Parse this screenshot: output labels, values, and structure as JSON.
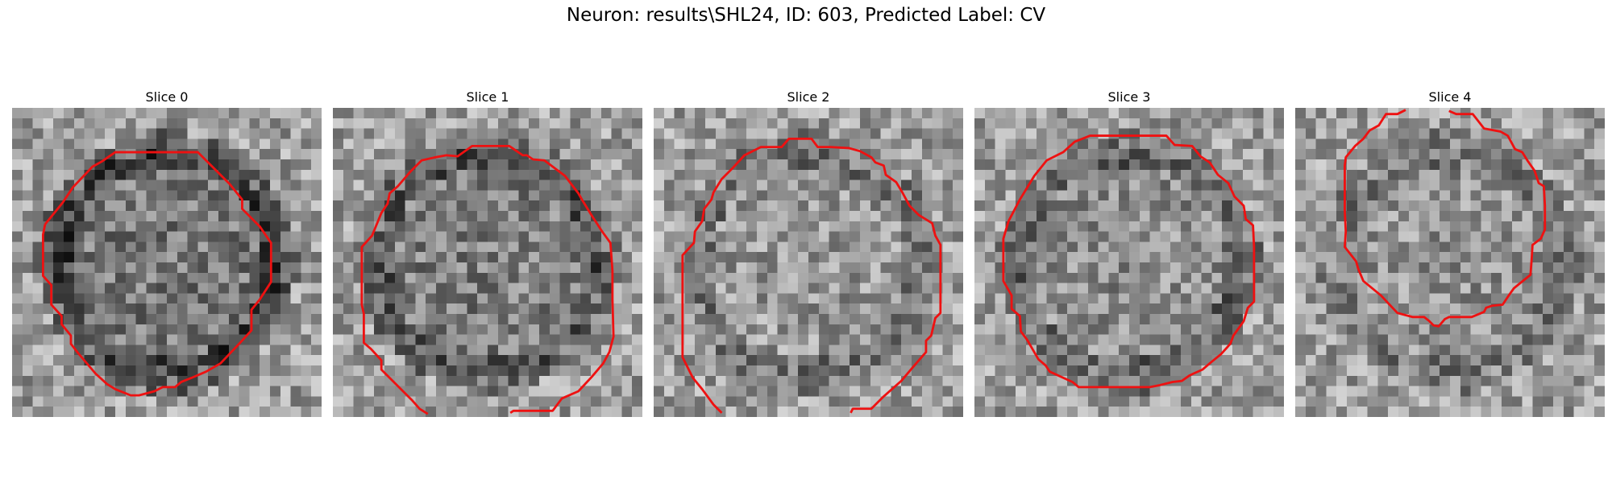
{
  "figure": {
    "title": "Neuron: results\\SHL24, ID: 603, Predicted Label: CV"
  },
  "panels": [
    {
      "title": "Slice 0"
    },
    {
      "title": "Slice 1"
    },
    {
      "title": "Slice 2"
    },
    {
      "title": "Slice 3"
    },
    {
      "title": "Slice 4"
    }
  ],
  "colors": {
    "contour": "#ee1111",
    "background": "#ffffff"
  }
}
